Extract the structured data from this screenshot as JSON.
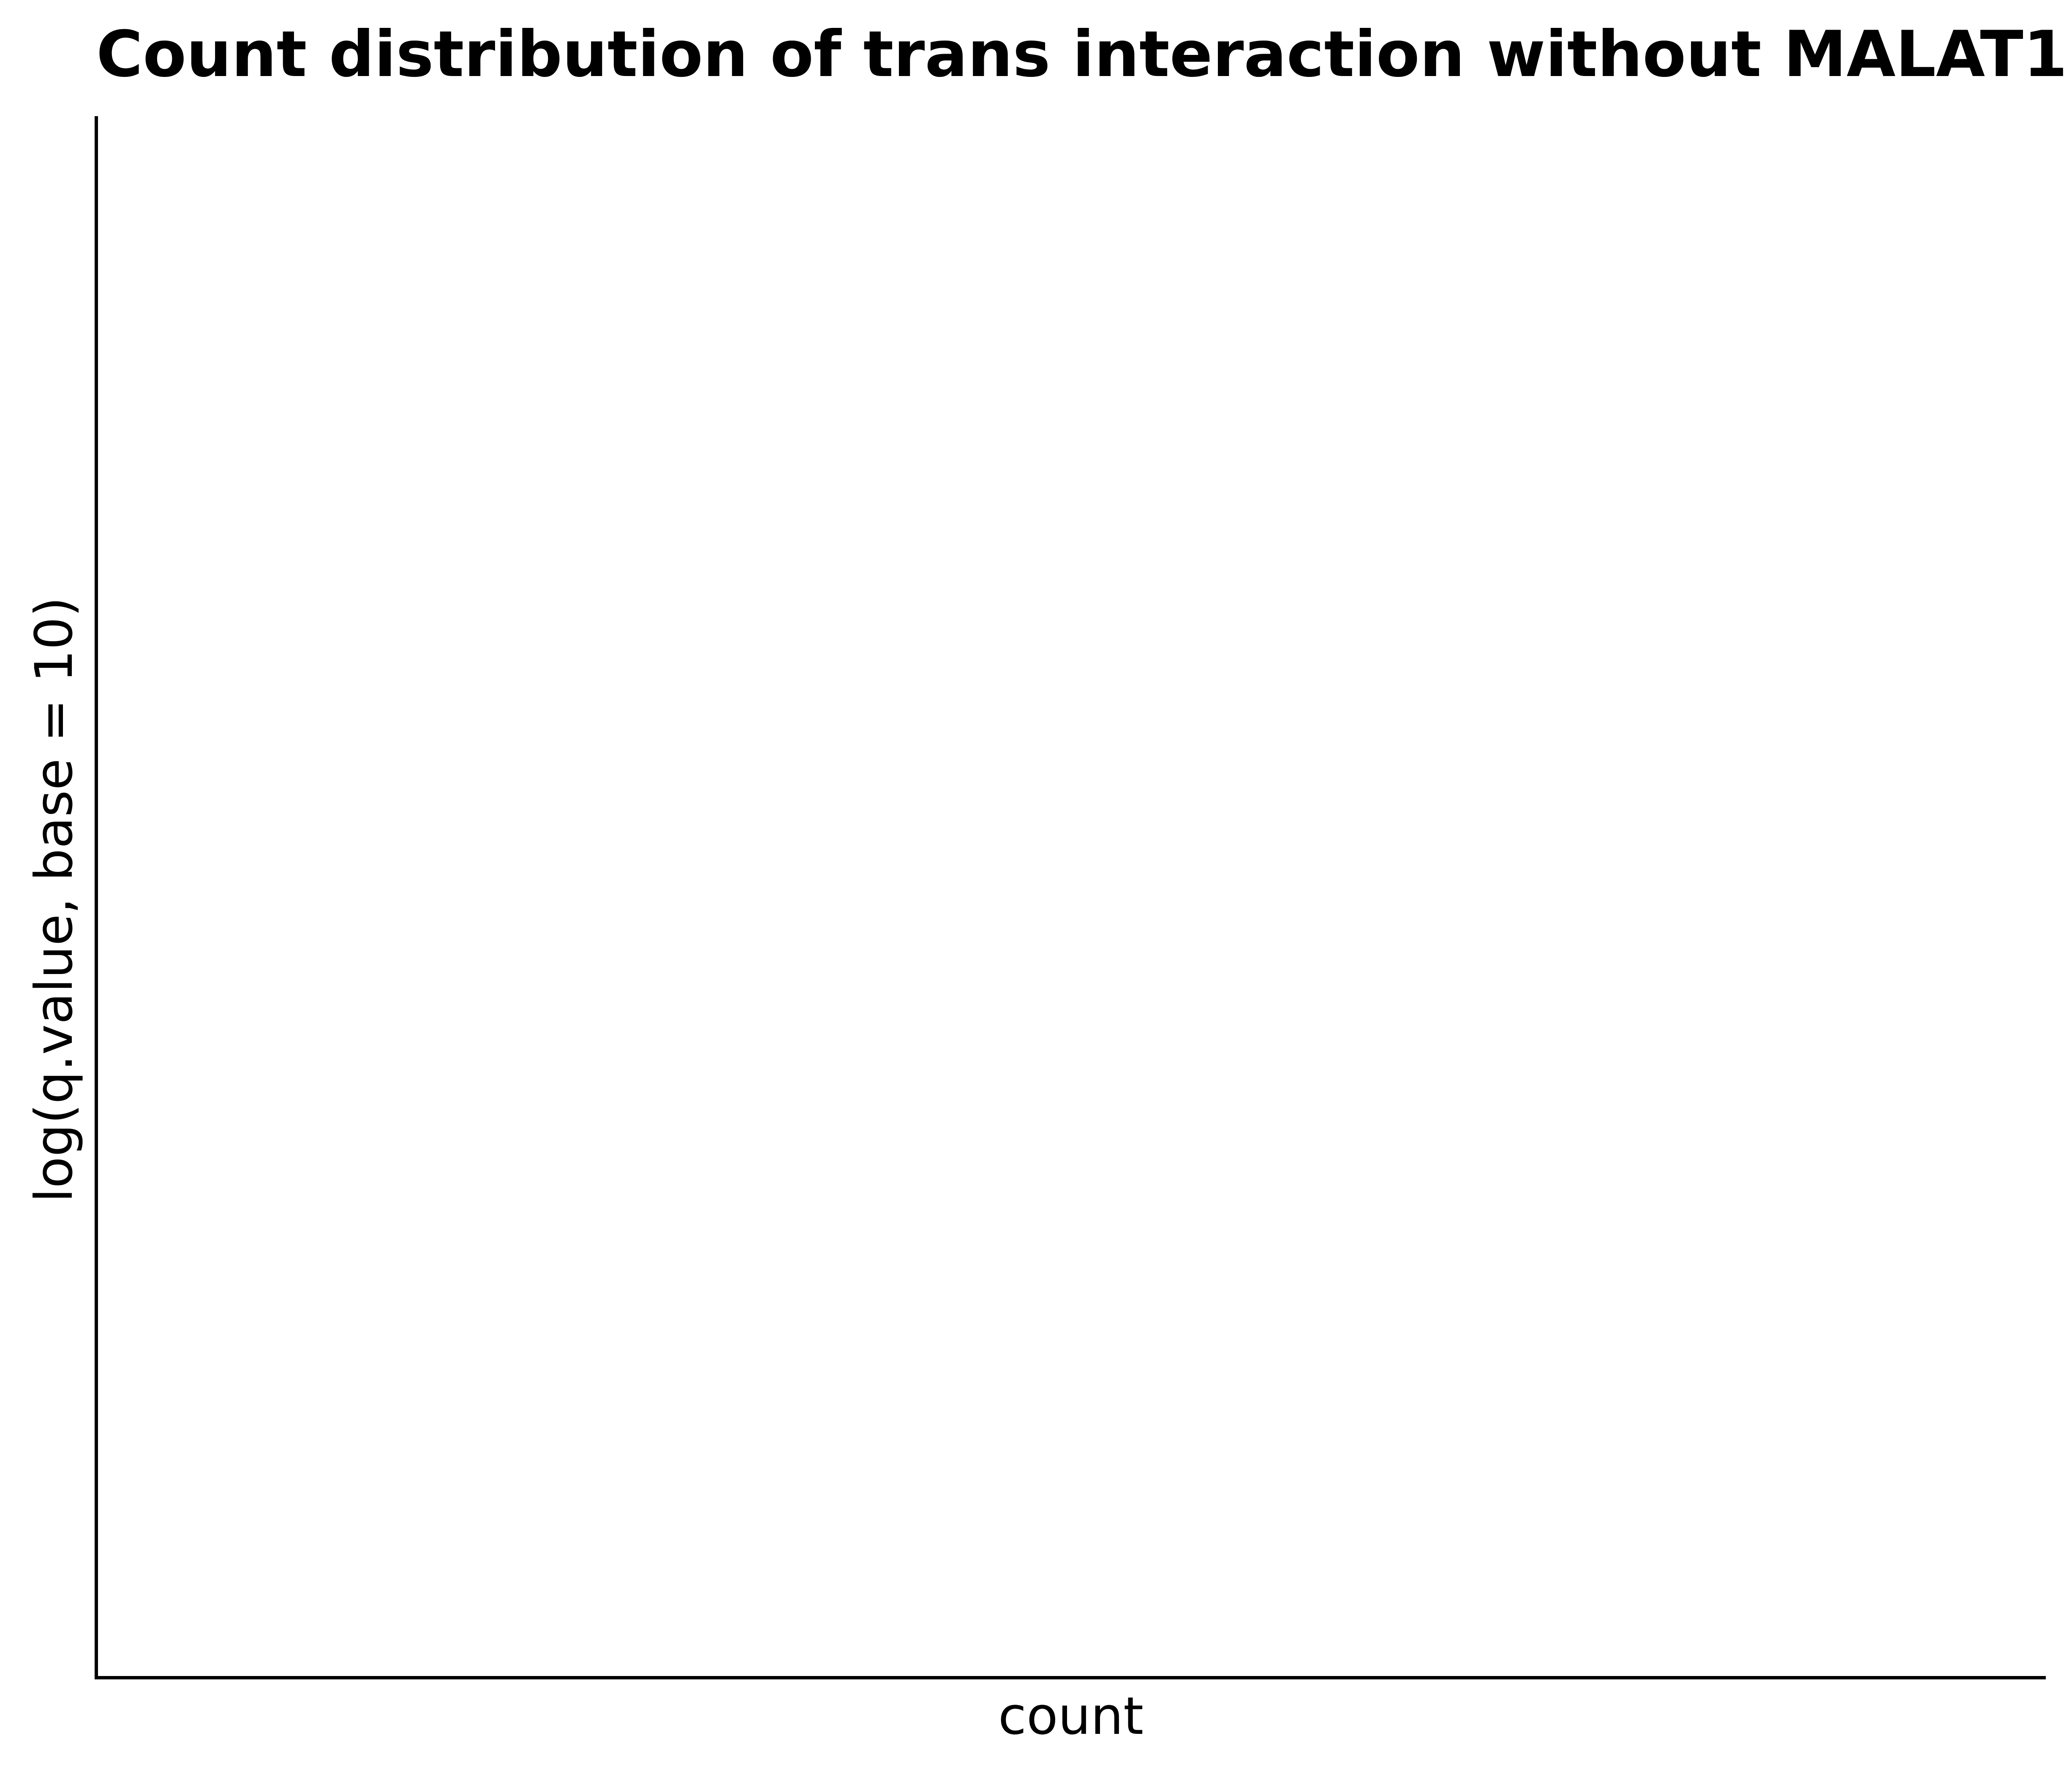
{
  "chart_data": {
    "type": "bar",
    "title": "Count distribution of trans interaction without MALAT1",
    "xlabel": "count",
    "ylabel": "log(q.value, base = 10)",
    "categories": [],
    "values": [],
    "grid": false,
    "legend": "none"
  }
}
